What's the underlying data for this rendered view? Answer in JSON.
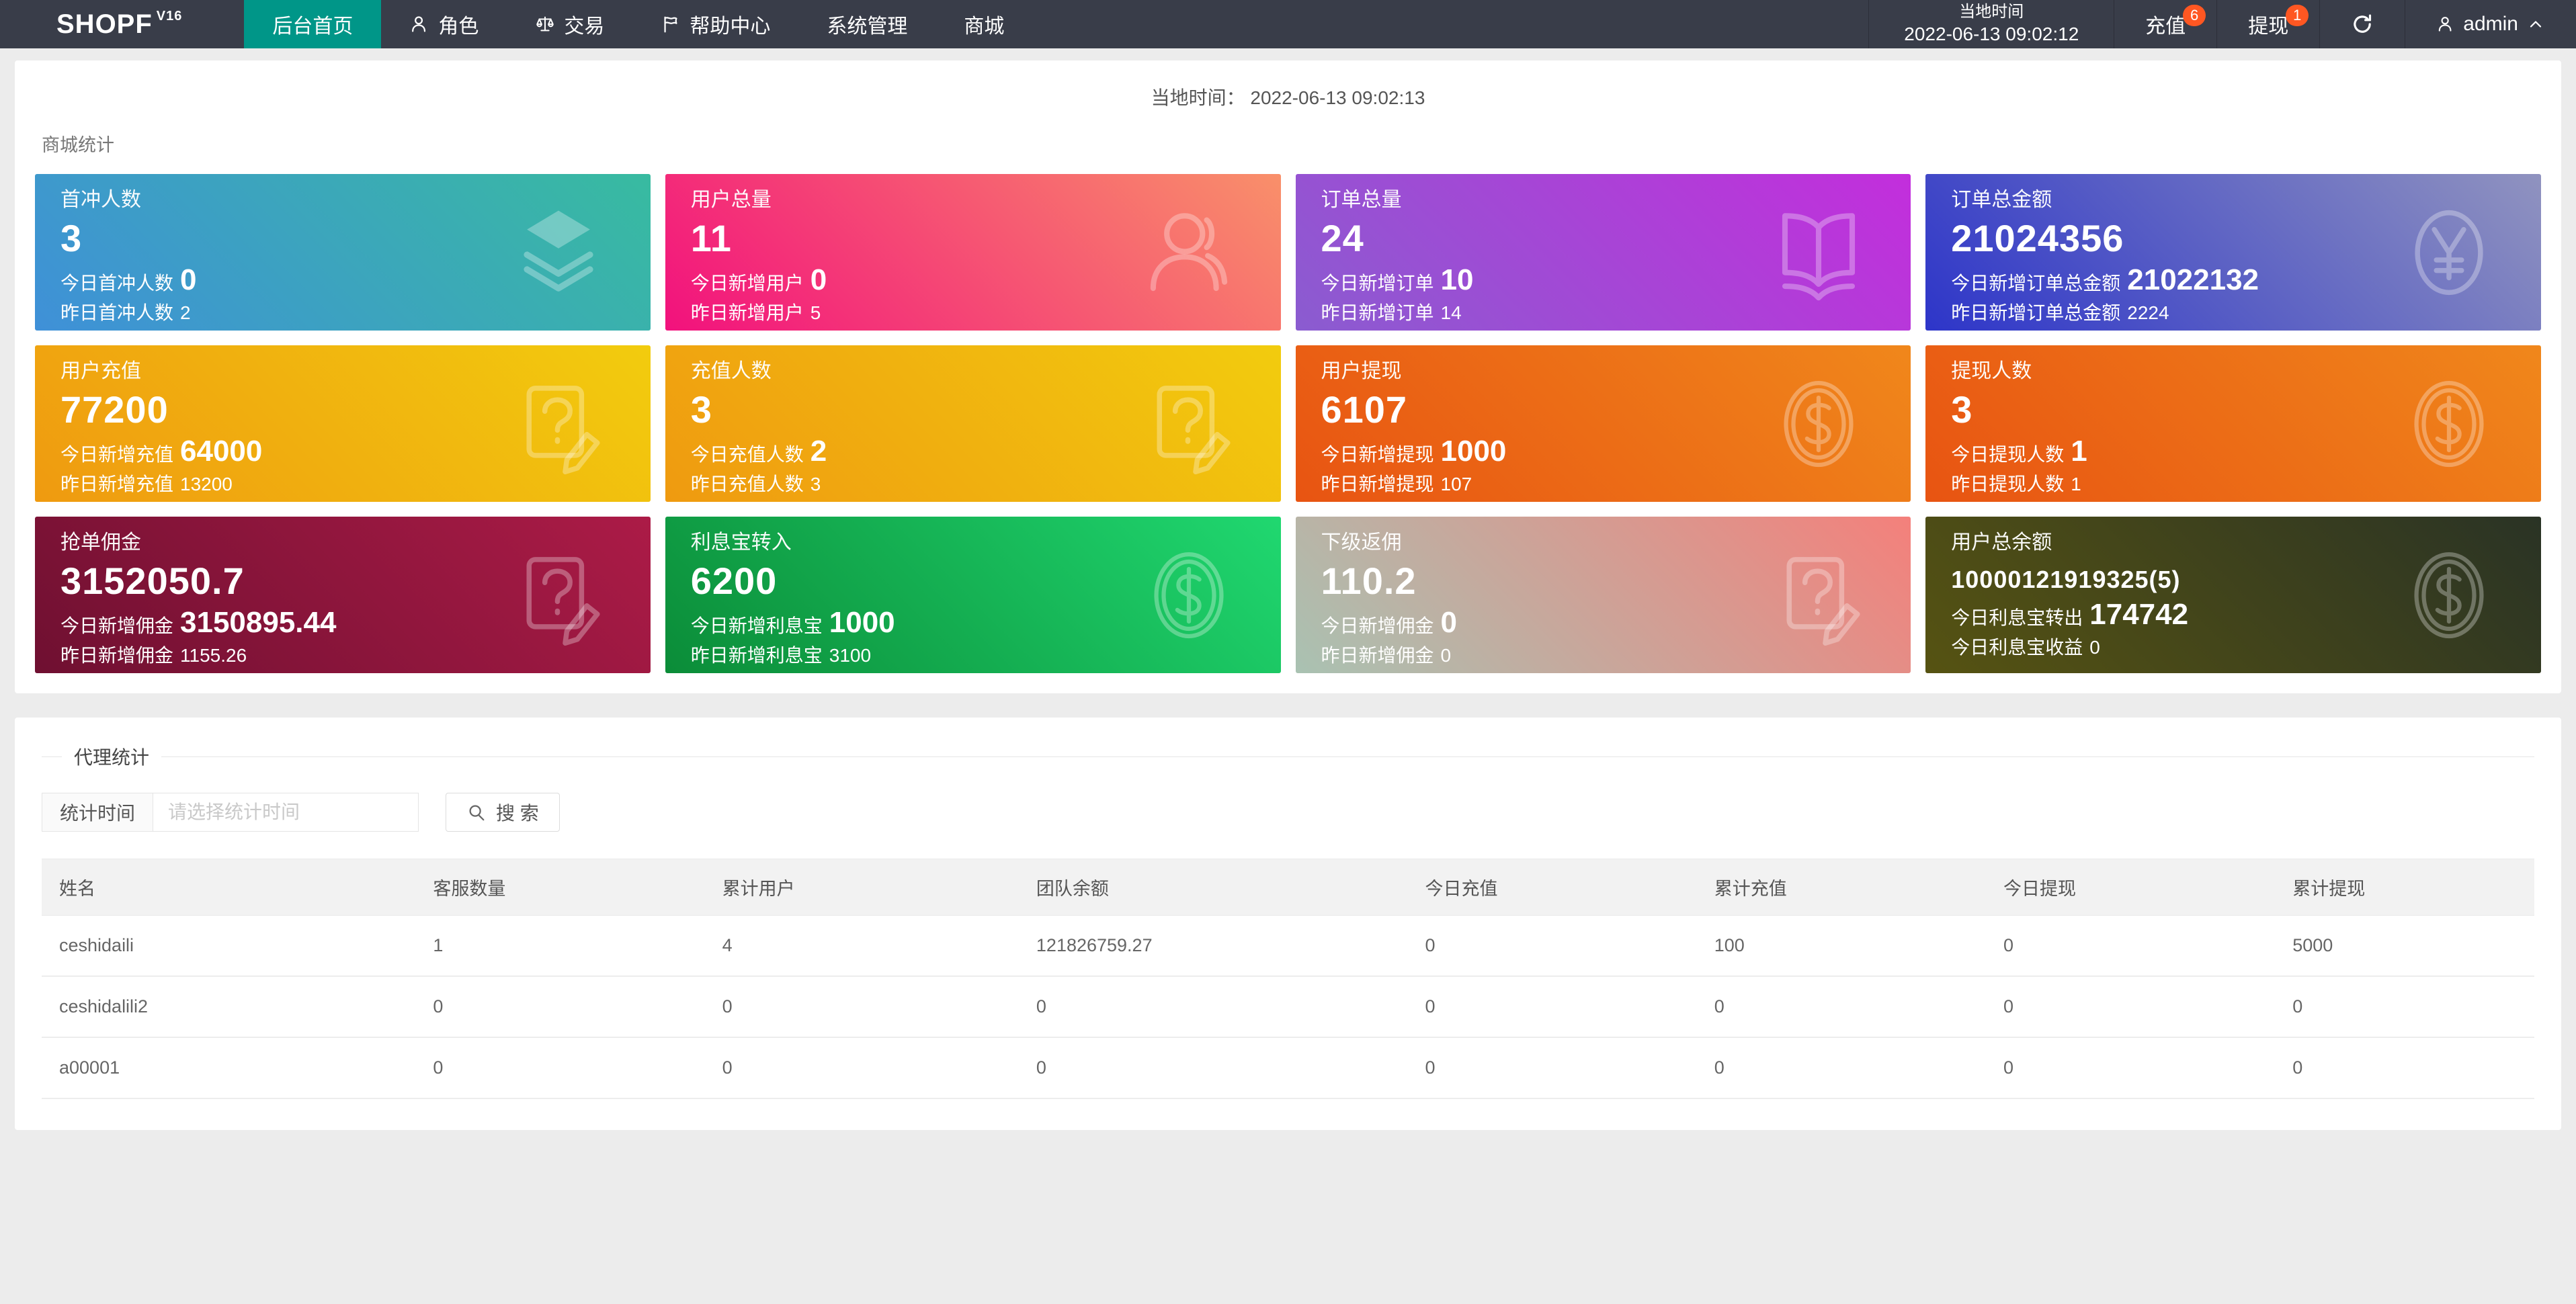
{
  "page": {
    "background": "#ececec"
  },
  "navbar": {
    "bg_color": "#393d49",
    "accent_color": "#009688",
    "badge_color": "#ff5722",
    "logo": "SHOPF",
    "logo_version": "V16",
    "menu": [
      {
        "label": "后台首页",
        "active": true
      },
      {
        "label": "角色",
        "icon": "person-icon"
      },
      {
        "label": "交易",
        "icon": "scales-icon"
      },
      {
        "label": "帮助中心",
        "icon": "flag-icon"
      },
      {
        "label": "系统管理"
      },
      {
        "label": "商城"
      }
    ],
    "local_time_label": "当地时间",
    "local_time_value": "2022-06-13 09:02:12",
    "recharge_label": "充值",
    "recharge_badge": "6",
    "withdraw_label": "提现",
    "withdraw_badge": "1",
    "username": "admin"
  },
  "stats_panel": {
    "time_label": "当地时间：",
    "time_value": "2022-06-13 09:02:13",
    "section_title": "商城统计",
    "cards": [
      {
        "title": "首冲人数",
        "value": "3",
        "line2_label": "今日首冲人数",
        "line2_value": "0",
        "line3_label": "昨日首冲人数",
        "line3_value": "2",
        "icon": "layers-icon",
        "gradient": [
          "#3f90d8",
          "#38bba0"
        ]
      },
      {
        "title": "用户总量",
        "value": "11",
        "line2_label": "今日新增用户",
        "line2_value": "0",
        "line3_label": "昨日新增用户",
        "line3_value": "5",
        "icon": "user-icon",
        "gradient": [
          "#f2117d",
          "#f9906a"
        ]
      },
      {
        "title": "订单总量",
        "value": "24",
        "line2_label": "今日新增订单",
        "line2_value": "10",
        "line3_label": "昨日新增订单",
        "line3_value": "14",
        "icon": "book-icon",
        "gradient": [
          "#8a5cd0",
          "#c32edc"
        ]
      },
      {
        "title": "订单总金额",
        "value": "21024356",
        "line2_label": "今日新增订单总金额",
        "line2_value": "21022132",
        "line3_label": "昨日新增订单总金额",
        "line3_value": "2224",
        "icon": "yen-circle-icon",
        "gradient": [
          "#2d35c9",
          "#9093bf"
        ]
      },
      {
        "title": "用户充值",
        "value": "77200",
        "line2_label": "今日新增充值",
        "line2_value": "64000",
        "line3_label": "昨日新增充值",
        "line3_value": "13200",
        "icon": "doc-question-icon",
        "gradient": [
          "#ef9a10",
          "#f2cc0e"
        ]
      },
      {
        "title": "充值人数",
        "value": "3",
        "line2_label": "今日充值人数",
        "line2_value": "2",
        "line3_label": "昨日充值人数",
        "line3_value": "3",
        "icon": "doc-question-icon",
        "gradient": [
          "#ef9a10",
          "#f2cc0e"
        ]
      },
      {
        "title": "用户提现",
        "value": "6107",
        "line2_label": "今日新增提现",
        "line2_value": "1000",
        "line3_label": "昨日新增提现",
        "line3_value": "107",
        "icon": "dollar-circle-icon",
        "gradient": [
          "#e85412",
          "#f0871b"
        ]
      },
      {
        "title": "提现人数",
        "value": "3",
        "line2_label": "今日提现人数",
        "line2_value": "1",
        "line3_label": "昨日提现人数",
        "line3_value": "1",
        "icon": "dollar-circle-icon",
        "gradient": [
          "#e85412",
          "#f0871b"
        ]
      },
      {
        "title": "抢单佣金",
        "value": "3152050.7",
        "line2_label": "今日新增佣金",
        "line2_value": "3150895.44",
        "line3_label": "昨日新增佣金",
        "line3_value": "1155.26",
        "icon": "doc-question-icon",
        "gradient": [
          "#6f1031",
          "#ac1b47"
        ]
      },
      {
        "title": "利息宝转入",
        "value": "6200",
        "line2_label": "今日新增利息宝",
        "line2_value": "1000",
        "line3_label": "昨日新增利息宝",
        "line3_value": "3100",
        "icon": "dollar-circle-icon",
        "gradient": [
          "#0b8c38",
          "#20d870"
        ]
      },
      {
        "title": "下级返佣",
        "value": "110.2",
        "line2_label": "今日新增佣金",
        "line2_value": "0",
        "line3_label": "昨日新增佣金",
        "line3_value": "0",
        "icon": "doc-question-icon",
        "gradient": [
          "#a9c2b2",
          "#f4807b"
        ]
      },
      {
        "title": "用户总余额",
        "value": "10000121919325(5)",
        "line2_label": "今日利息宝转出",
        "line2_value": "174742",
        "line3_label": "今日利息宝收益",
        "line3_value": "0",
        "icon": "dollar-circle-icon",
        "gradient": [
          "#565312",
          "#2a3325"
        ],
        "small_value": true
      }
    ]
  },
  "agent_panel": {
    "legend": "代理统计",
    "filter_label": "统计时间",
    "filter_placeholder": "请选择统计时间",
    "search_label": "搜 索",
    "table": {
      "columns": [
        "姓名",
        "客服数量",
        "累计用户",
        "团队余额",
        "今日充值",
        "累计充值",
        "今日提现",
        "累计提现"
      ],
      "rows": [
        [
          "ceshidaili",
          "1",
          "4",
          "121826759.27",
          "0",
          "100",
          "0",
          "5000"
        ],
        [
          "ceshidalili2",
          "0",
          "0",
          "0",
          "0",
          "0",
          "0",
          "0"
        ],
        [
          "a00001",
          "0",
          "0",
          "0",
          "0",
          "0",
          "0",
          "0"
        ]
      ]
    }
  }
}
